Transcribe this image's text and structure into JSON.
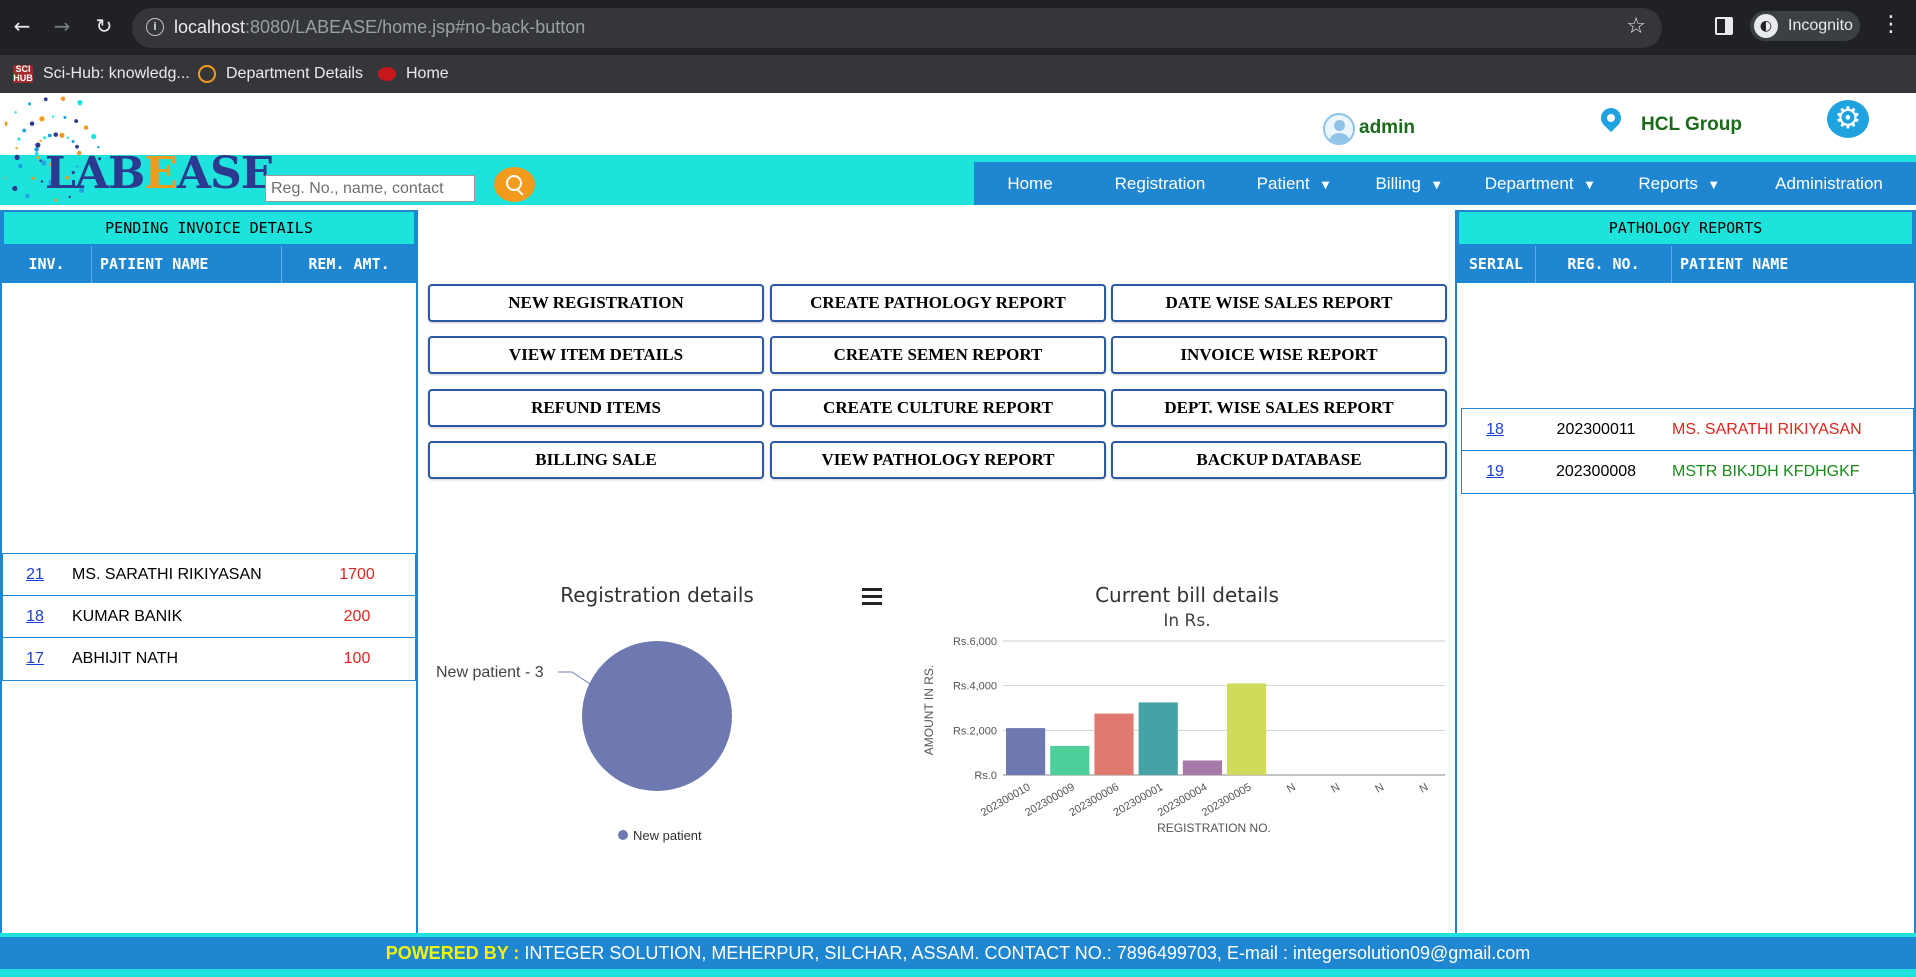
{
  "browser": {
    "url_host": "localhost",
    "url_rest": ":8080/LABEASE/home.jsp#no-back-button",
    "profile_label": "Incognito",
    "bookmarks": [
      {
        "label": "Sci-Hub: knowledg...",
        "icon": "scihub-icon"
      },
      {
        "label": "Department Details",
        "icon": "department-icon"
      },
      {
        "label": "Home",
        "icon": "home-cherry-icon"
      }
    ]
  },
  "header": {
    "logo_text_1": "L",
    "logo_text_2": "AB",
    "logo_text_3": "E",
    "logo_text_4": "ASE",
    "user_name": "admin",
    "org_name": "HCL Group",
    "search_placeholder": "Reg. No., name, contact"
  },
  "nav": {
    "items": [
      {
        "label": "Home",
        "dropdown": false
      },
      {
        "label": "Registration",
        "dropdown": false
      },
      {
        "label": "Patient",
        "dropdown": true
      },
      {
        "label": "Billing",
        "dropdown": true
      },
      {
        "label": "Department",
        "dropdown": true
      },
      {
        "label": "Reports",
        "dropdown": true
      },
      {
        "label": "Administration",
        "dropdown": false
      }
    ],
    "caret": "▼"
  },
  "pending_invoices": {
    "title": "PENDING INVOICE DETAILS",
    "columns": [
      "INV.",
      "PATIENT NAME",
      "REM. AMT."
    ],
    "rows": [
      {
        "inv": "21",
        "name": "MS. SARATHI RIKIYASAN",
        "amount": "1700"
      },
      {
        "inv": "18",
        "name": "KUMAR BANIK",
        "amount": "200"
      },
      {
        "inv": "17",
        "name": "ABHIJIT NATH",
        "amount": "100"
      }
    ]
  },
  "pathology_reports": {
    "title": "PATHOLOGY REPORTS",
    "columns": [
      "SERIAL",
      "REG. NO.",
      "PATIENT NAME"
    ],
    "rows": [
      {
        "serial": "18",
        "reg_no": "202300011",
        "name": "MS. SARATHI RIKIYASAN",
        "color": "#e0261c"
      },
      {
        "serial": "19",
        "reg_no": "202300008",
        "name": "MSTR BIKJDH KFDHGKF",
        "color": "#1a8a1a"
      }
    ]
  },
  "quick_buttons": [
    [
      "NEW REGISTRATION",
      "CREATE PATHOLOGY REPORT",
      "DATE WISE SALES REPORT"
    ],
    [
      "VIEW ITEM DETAILS",
      "CREATE SEMEN REPORT",
      "INVOICE WISE REPORT"
    ],
    [
      "REFUND ITEMS",
      "CREATE CULTURE REPORT",
      "DEPT. WISE SALES REPORT"
    ],
    [
      "BILLING SALE",
      "VIEW PATHOLOGY REPORT",
      "BACKUP DATABASE"
    ]
  ],
  "footer": {
    "powered_label": "POWERED BY :",
    "text": " INTEGER SOLUTION, MEHERPUR, SILCHAR, ASSAM. CONTACT NO.: 7896499703, E-mail : integersolution09@gmail.com"
  },
  "colors": {
    "teal": "#1ee3dc",
    "blue": "#1f86d1",
    "orange": "#f29b1d",
    "amount_red": "#e0261c",
    "green": "#1a6b1a"
  },
  "chart_data": [
    {
      "type": "pie",
      "title": "Registration details",
      "slices": [
        {
          "label": "New patient",
          "value": 3,
          "color": "#6d79b0"
        }
      ],
      "data_label": "New patient - 3",
      "legend": [
        "New patient"
      ],
      "legend_position": "bottom"
    },
    {
      "type": "bar",
      "title": "Current bill details",
      "subtitle": "In Rs.",
      "xlabel": "REGISTRATION NO.",
      "ylabel": "AMOUNT IN RS.",
      "ylim": [
        0,
        6000
      ],
      "yticks": [
        "Rs.0",
        "Rs.2,000",
        "Rs.4,000",
        "Rs.6,000"
      ],
      "ytick_values": [
        0,
        2000,
        4000,
        6000
      ],
      "categories": [
        "202300010",
        "202300009",
        "202300006",
        "202300001",
        "202300004",
        "202300005",
        "N",
        "N",
        "N",
        "N"
      ],
      "values": [
        2100,
        1300,
        2750,
        3250,
        650,
        4100,
        0,
        0,
        0,
        0
      ],
      "bar_colors": [
        "#6d79b0",
        "#4dcf9a",
        "#e07a70",
        "#45a3a6",
        "#a679a8",
        "#cfdb5a",
        "#cccccc",
        "#cccccc",
        "#cccccc",
        "#cccccc"
      ],
      "grid": true
    }
  ]
}
